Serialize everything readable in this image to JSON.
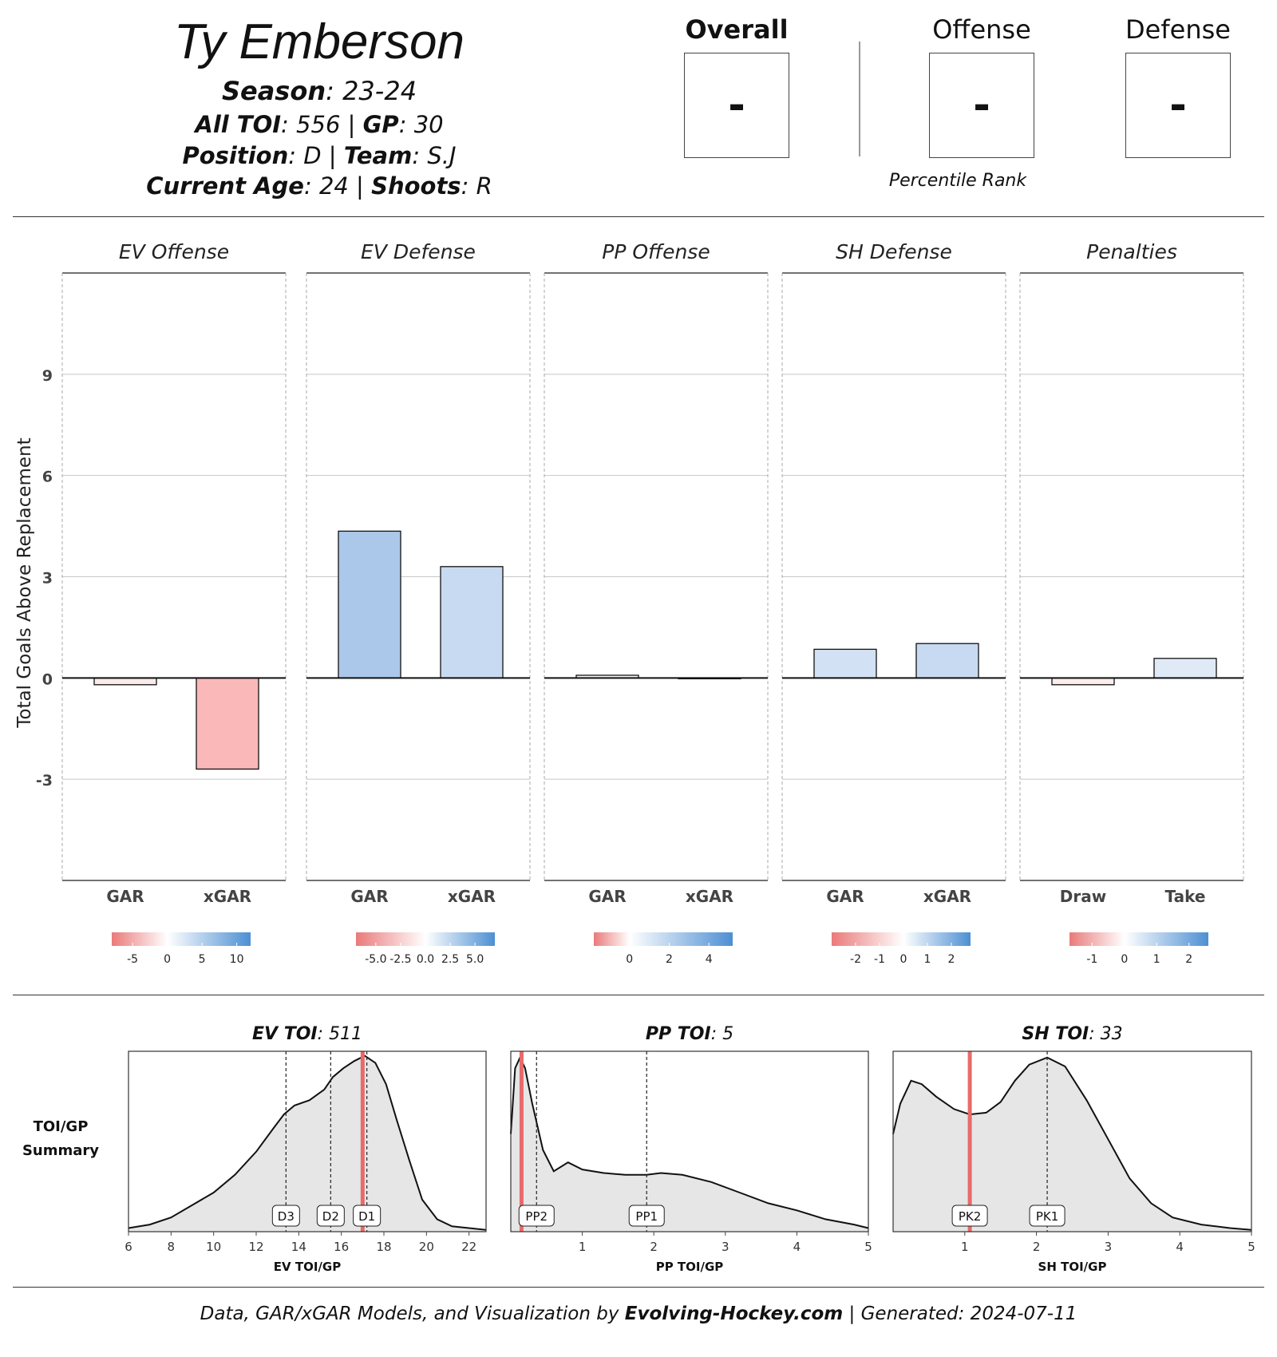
{
  "player": {
    "name": "Ty Emberson",
    "season_label": "Season",
    "season": "23-24",
    "toi_label": "All TOI",
    "toi": "556",
    "gp_label": "GP",
    "gp": "30",
    "position_label": "Position",
    "position": "D",
    "team_label": "Team",
    "team": "S.J",
    "age_label": "Current Age",
    "age": "24",
    "shoots_label": "Shoots",
    "shoots": "R"
  },
  "ranks": {
    "overall_label": "Overall",
    "overall_value": "-",
    "offense_label": "Offense",
    "offense_value": "-",
    "defense_label": "Defense",
    "defense_value": "-",
    "caption": "Percentile Rank"
  },
  "chart_data": [
    {
      "type": "bar",
      "title": "Total Goals Above Replacement",
      "ylabel": "Total Goals Above Replacement",
      "ylim": [
        -6,
        12
      ],
      "yticks": [
        -3,
        0,
        3,
        6,
        9
      ],
      "grid": true,
      "panels": [
        {
          "title": "EV Offense",
          "categories": [
            "GAR",
            "xGAR"
          ],
          "values": [
            -0.2,
            -2.7
          ],
          "colors": [
            "#fbeaea",
            "#fab8b8"
          ],
          "legend_ticks": [
            {
              "v": -5,
              "label": "-5"
            },
            {
              "v": 0,
              "label": "0"
            },
            {
              "v": 5,
              "label": "5"
            },
            {
              "v": 10,
              "label": "10"
            }
          ],
          "legend_range": [
            -8,
            12
          ]
        },
        {
          "title": "EV Defense",
          "categories": [
            "GAR",
            "xGAR"
          ],
          "values": [
            4.35,
            3.3
          ],
          "colors": [
            "#abc8eb",
            "#c8daf1"
          ],
          "legend_ticks": [
            {
              "v": -5,
              "label": "-5.0"
            },
            {
              "v": -2.5,
              "label": "-2.5"
            },
            {
              "v": 0,
              "label": "0.0"
            },
            {
              "v": 2.5,
              "label": "2.5"
            },
            {
              "v": 5,
              "label": "5.0"
            }
          ],
          "legend_range": [
            -7,
            7
          ]
        },
        {
          "title": "PP Offense",
          "categories": [
            "GAR",
            "xGAR"
          ],
          "values": [
            0.08,
            -0.02
          ],
          "colors": [
            "#f6f8fc",
            "#fdf7f7"
          ],
          "legend_ticks": [
            {
              "v": 0,
              "label": "0"
            },
            {
              "v": 2,
              "label": "2"
            },
            {
              "v": 4,
              "label": "4"
            }
          ],
          "legend_range": [
            -1.8,
            5.2
          ]
        },
        {
          "title": "SH Defense",
          "categories": [
            "GAR",
            "xGAR"
          ],
          "values": [
            0.85,
            1.02
          ],
          "colors": [
            "#d3e1f4",
            "#c8daf1"
          ],
          "legend_ticks": [
            {
              "v": -2,
              "label": "-2"
            },
            {
              "v": -1,
              "label": "-1"
            },
            {
              "v": 0,
              "label": "0"
            },
            {
              "v": 1,
              "label": "1"
            },
            {
              "v": 2,
              "label": "2"
            }
          ],
          "legend_range": [
            -3,
            2.8
          ]
        },
        {
          "title": "Penalties",
          "categories": [
            "Draw",
            "Take"
          ],
          "values": [
            -0.2,
            0.58
          ],
          "colors": [
            "#fcecec",
            "#e0eaf7"
          ],
          "legend_ticks": [
            {
              "v": -1,
              "label": "-1"
            },
            {
              "v": 0,
              "label": "0"
            },
            {
              "v": 1,
              "label": "1"
            },
            {
              "v": 2,
              "label": "2"
            }
          ],
          "legend_range": [
            -1.7,
            2.6
          ]
        }
      ]
    },
    {
      "type": "area",
      "title": "TOI/GP Summary",
      "row_label_line1": "TOI/GP",
      "row_label_line2": "Summary",
      "panels": [
        {
          "title_bold": "EV TOI",
          "title_value": "511",
          "xlabel": "EV TOI/GP",
          "xlim": [
            6,
            22.8
          ],
          "xticks": [
            6,
            8,
            10,
            12,
            14,
            16,
            18,
            20,
            22
          ],
          "player_value": 17.0,
          "markers": [
            {
              "label": "D3",
              "x": 13.4
            },
            {
              "label": "D2",
              "x": 15.5
            },
            {
              "label": "D1",
              "x": 17.2
            }
          ],
          "density": [
            [
              6,
              0.02
            ],
            [
              7,
              0.04
            ],
            [
              8,
              0.08
            ],
            [
              9,
              0.15
            ],
            [
              10,
              0.22
            ],
            [
              11,
              0.32
            ],
            [
              12,
              0.45
            ],
            [
              12.8,
              0.58
            ],
            [
              13.3,
              0.66
            ],
            [
              13.8,
              0.71
            ],
            [
              14.5,
              0.74
            ],
            [
              15.2,
              0.8
            ],
            [
              15.6,
              0.87
            ],
            [
              16.1,
              0.92
            ],
            [
              16.6,
              0.96
            ],
            [
              17.1,
              0.99
            ],
            [
              17.6,
              0.95
            ],
            [
              18.1,
              0.83
            ],
            [
              18.6,
              0.63
            ],
            [
              19.2,
              0.4
            ],
            [
              19.8,
              0.18
            ],
            [
              20.5,
              0.07
            ],
            [
              21.2,
              0.03
            ],
            [
              22,
              0.02
            ],
            [
              22.8,
              0.01
            ]
          ]
        },
        {
          "title_bold": "PP TOI",
          "title_value": "5",
          "xlabel": "PP TOI/GP",
          "xlim": [
            0,
            5
          ],
          "xticks": [
            1,
            2,
            3,
            4,
            5
          ],
          "player_value": 0.15,
          "markers": [
            {
              "label": "PP2",
              "x": 0.36
            },
            {
              "label": "PP1",
              "x": 1.9
            }
          ],
          "density": [
            [
              0,
              0.55
            ],
            [
              0.06,
              0.92
            ],
            [
              0.13,
              0.98
            ],
            [
              0.2,
              0.92
            ],
            [
              0.3,
              0.72
            ],
            [
              0.45,
              0.46
            ],
            [
              0.6,
              0.34
            ],
            [
              0.8,
              0.39
            ],
            [
              1.0,
              0.35
            ],
            [
              1.3,
              0.33
            ],
            [
              1.6,
              0.32
            ],
            [
              1.9,
              0.32
            ],
            [
              2.1,
              0.33
            ],
            [
              2.4,
              0.32
            ],
            [
              2.8,
              0.28
            ],
            [
              3.2,
              0.22
            ],
            [
              3.6,
              0.16
            ],
            [
              4.0,
              0.12
            ],
            [
              4.4,
              0.07
            ],
            [
              4.8,
              0.04
            ],
            [
              5,
              0.02
            ]
          ]
        },
        {
          "title_bold": "SH TOI",
          "title_value": "33",
          "xlabel": "SH TOI/GP",
          "xlim": [
            0,
            5
          ],
          "xticks": [
            1,
            2,
            3,
            4,
            5
          ],
          "player_value": 1.07,
          "markers": [
            {
              "label": "PK2",
              "x": 1.07
            },
            {
              "label": "PK1",
              "x": 2.15
            }
          ],
          "density": [
            [
              0,
              0.55
            ],
            [
              0.1,
              0.72
            ],
            [
              0.25,
              0.85
            ],
            [
              0.4,
              0.83
            ],
            [
              0.6,
              0.76
            ],
            [
              0.85,
              0.69
            ],
            [
              1.07,
              0.66
            ],
            [
              1.3,
              0.67
            ],
            [
              1.5,
              0.73
            ],
            [
              1.7,
              0.85
            ],
            [
              1.9,
              0.94
            ],
            [
              2.15,
              0.98
            ],
            [
              2.4,
              0.93
            ],
            [
              2.7,
              0.74
            ],
            [
              3.0,
              0.52
            ],
            [
              3.3,
              0.3
            ],
            [
              3.6,
              0.16
            ],
            [
              3.9,
              0.08
            ],
            [
              4.3,
              0.04
            ],
            [
              4.7,
              0.02
            ],
            [
              5,
              0.01
            ]
          ]
        }
      ]
    }
  ],
  "footer": {
    "prefix": "Data, GAR/xGAR Models, and Visualization by ",
    "site": "Evolving-Hockey.com",
    "suffix": " | Generated: 2024-07-11"
  }
}
